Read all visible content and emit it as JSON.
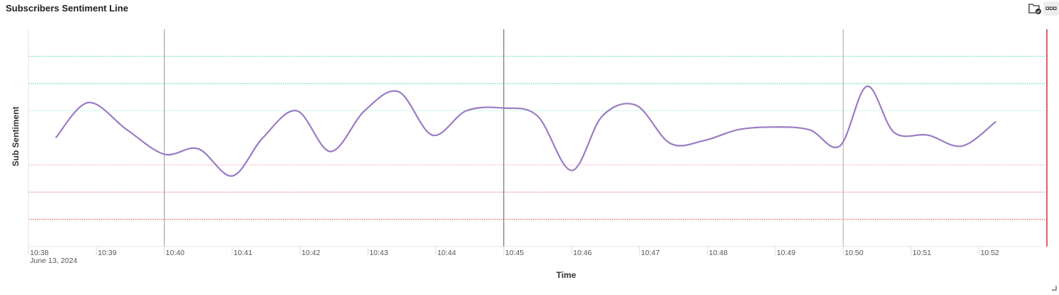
{
  "panel": {
    "title": "Subscribers Sentiment Line",
    "icons": {
      "folder": "folder-check-icon",
      "menu": "more-horizontal-icon",
      "resize": "resize-corner-icon"
    }
  },
  "chart_data": {
    "type": "line",
    "xlabel": "Time",
    "ylabel": "Sub Sentiment",
    "x_ticks": [
      "10:38",
      "10:39",
      "10:40",
      "10:41",
      "10:42",
      "10:43",
      "10:44",
      "10:45",
      "10:46",
      "10:47",
      "10:48",
      "10:49",
      "10:50",
      "10:51",
      "10:52"
    ],
    "x_date_label": "June 13, 2024",
    "xlim": [
      "10:38",
      "10:53"
    ],
    "ylim": [
      0,
      8
    ],
    "grid": false,
    "series": [
      {
        "color": "#9b7cc4",
        "points": [
          [
            "10:38:24",
            4.0
          ],
          [
            "10:38:53",
            5.3
          ],
          [
            "10:39:27",
            4.3
          ],
          [
            "10:40:00",
            3.4
          ],
          [
            "10:40:30",
            3.6
          ],
          [
            "10:41:00",
            2.6
          ],
          [
            "10:41:27",
            4.0
          ],
          [
            "10:41:57",
            5.0
          ],
          [
            "10:42:27",
            3.5
          ],
          [
            "10:42:57",
            5.0
          ],
          [
            "10:43:27",
            5.7
          ],
          [
            "10:43:57",
            4.1
          ],
          [
            "10:44:27",
            5.0
          ],
          [
            "10:45:00",
            5.1
          ],
          [
            "10:45:30",
            4.8
          ],
          [
            "10:46:00",
            2.8
          ],
          [
            "10:46:27",
            4.8
          ],
          [
            "10:46:57",
            5.2
          ],
          [
            "10:47:27",
            3.8
          ],
          [
            "10:47:57",
            3.9
          ],
          [
            "10:48:27",
            4.3
          ],
          [
            "10:48:57",
            4.4
          ],
          [
            "10:49:30",
            4.3
          ],
          [
            "10:49:57",
            3.7
          ],
          [
            "10:50:21",
            5.9
          ],
          [
            "10:50:45",
            4.2
          ],
          [
            "10:51:15",
            4.1
          ],
          [
            "10:51:45",
            3.7
          ],
          [
            "10:52:15",
            4.6
          ]
        ]
      }
    ],
    "reference_lines": [
      {
        "y": 7.0,
        "color": "#3ddc97",
        "style": "dotted"
      },
      {
        "y": 6.0,
        "color": "#3ddc97",
        "style": "dotted"
      },
      {
        "y": 5.0,
        "color": "#9ef0d2",
        "style": "dotted"
      },
      {
        "y": 3.0,
        "color": "#f4a6a6",
        "style": "dotted"
      },
      {
        "y": 2.0,
        "color": "#e36b6b",
        "style": "dotted"
      },
      {
        "y": 1.0,
        "color": "#d93a3a",
        "style": "dotted"
      }
    ],
    "vertical_markers": [
      {
        "x": "10:40",
        "color": "#999999"
      },
      {
        "x": "10:45",
        "color": "#555555"
      },
      {
        "x": "10:50",
        "color": "#aaaaaa"
      },
      {
        "x": "10:53",
        "color": "#d93a3a"
      }
    ]
  }
}
